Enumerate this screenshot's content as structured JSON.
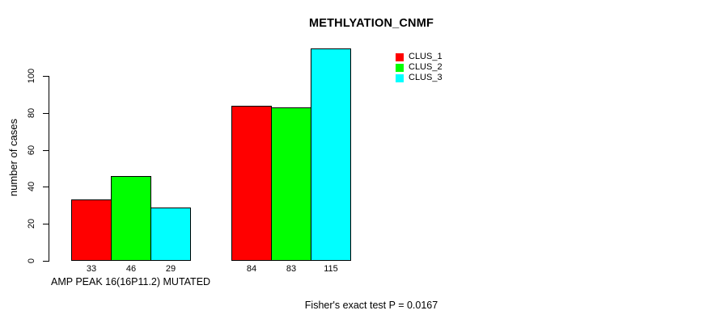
{
  "chart_data": {
    "type": "bar",
    "title": "METHLYATION_CNMF",
    "ylabel": "number of cases",
    "xlabel": "AMP PEAK 16(16P11.2) MUTATED",
    "annotation": "Fisher's exact test P = 0.0167",
    "series": [
      {
        "name": "CLUS_1",
        "color": "#ff0000",
        "values": [
          33,
          84
        ]
      },
      {
        "name": "CLUS_2",
        "color": "#00ff00",
        "values": [
          46,
          83
        ]
      },
      {
        "name": "CLUS_3",
        "color": "#00ffff",
        "values": [
          29,
          115
        ]
      }
    ],
    "bar_labels": [
      [
        "33",
        "46",
        "29"
      ],
      [
        "84",
        "83",
        "115"
      ]
    ],
    "yticks": [
      0,
      20,
      40,
      60,
      80,
      100
    ],
    "ylim": [
      0,
      115
    ],
    "grid": false,
    "legend_position": "top-right",
    "background": "#ffffff",
    "bar_border_color": "#000000"
  }
}
